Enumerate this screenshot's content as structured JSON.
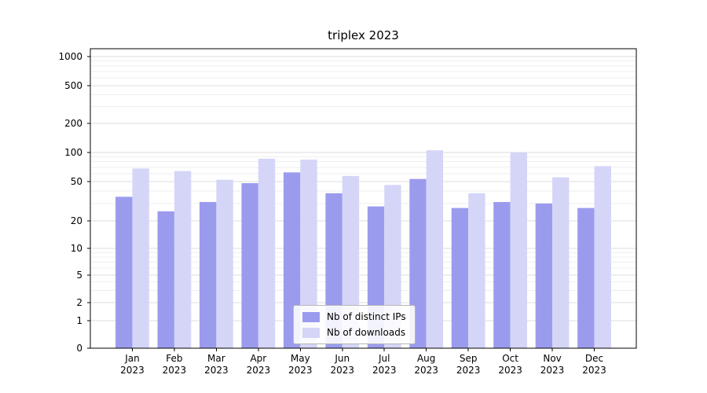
{
  "chart_data": {
    "type": "bar",
    "title": "triplex 2023",
    "yscale": "symlog",
    "grid": true,
    "legend_position": "lower center inside plot",
    "y_ticks": [
      0,
      1,
      2,
      5,
      10,
      20,
      50,
      100,
      200,
      500,
      1000
    ],
    "ylim": [
      0,
      1300
    ],
    "categories": [
      [
        "Jan",
        "2023"
      ],
      [
        "Feb",
        "2023"
      ],
      [
        "Mar",
        "2023"
      ],
      [
        "Apr",
        "2023"
      ],
      [
        "May",
        "2023"
      ],
      [
        "Jun",
        "2023"
      ],
      [
        "Jul",
        "2023"
      ],
      [
        "Aug",
        "2023"
      ],
      [
        "Sep",
        "2023"
      ],
      [
        "Oct",
        "2023"
      ],
      [
        "Nov",
        "2023"
      ],
      [
        "Dec",
        "2023"
      ]
    ],
    "series": [
      {
        "name": "Nb of distinct IPs",
        "color": "#9b9bee",
        "values": [
          35,
          25,
          31,
          48,
          62,
          38,
          28,
          53,
          27,
          31,
          30,
          27
        ]
      },
      {
        "name": "Nb of downloads",
        "color": "#d5d5f7",
        "values": [
          68,
          64,
          52,
          86,
          84,
          57,
          46,
          105,
          38,
          100,
          55,
          72
        ]
      }
    ],
    "colors": {
      "grid_major": "#dddddd",
      "grid_minor": "#efefef",
      "axis": "#000000",
      "background": "#ffffff"
    }
  }
}
